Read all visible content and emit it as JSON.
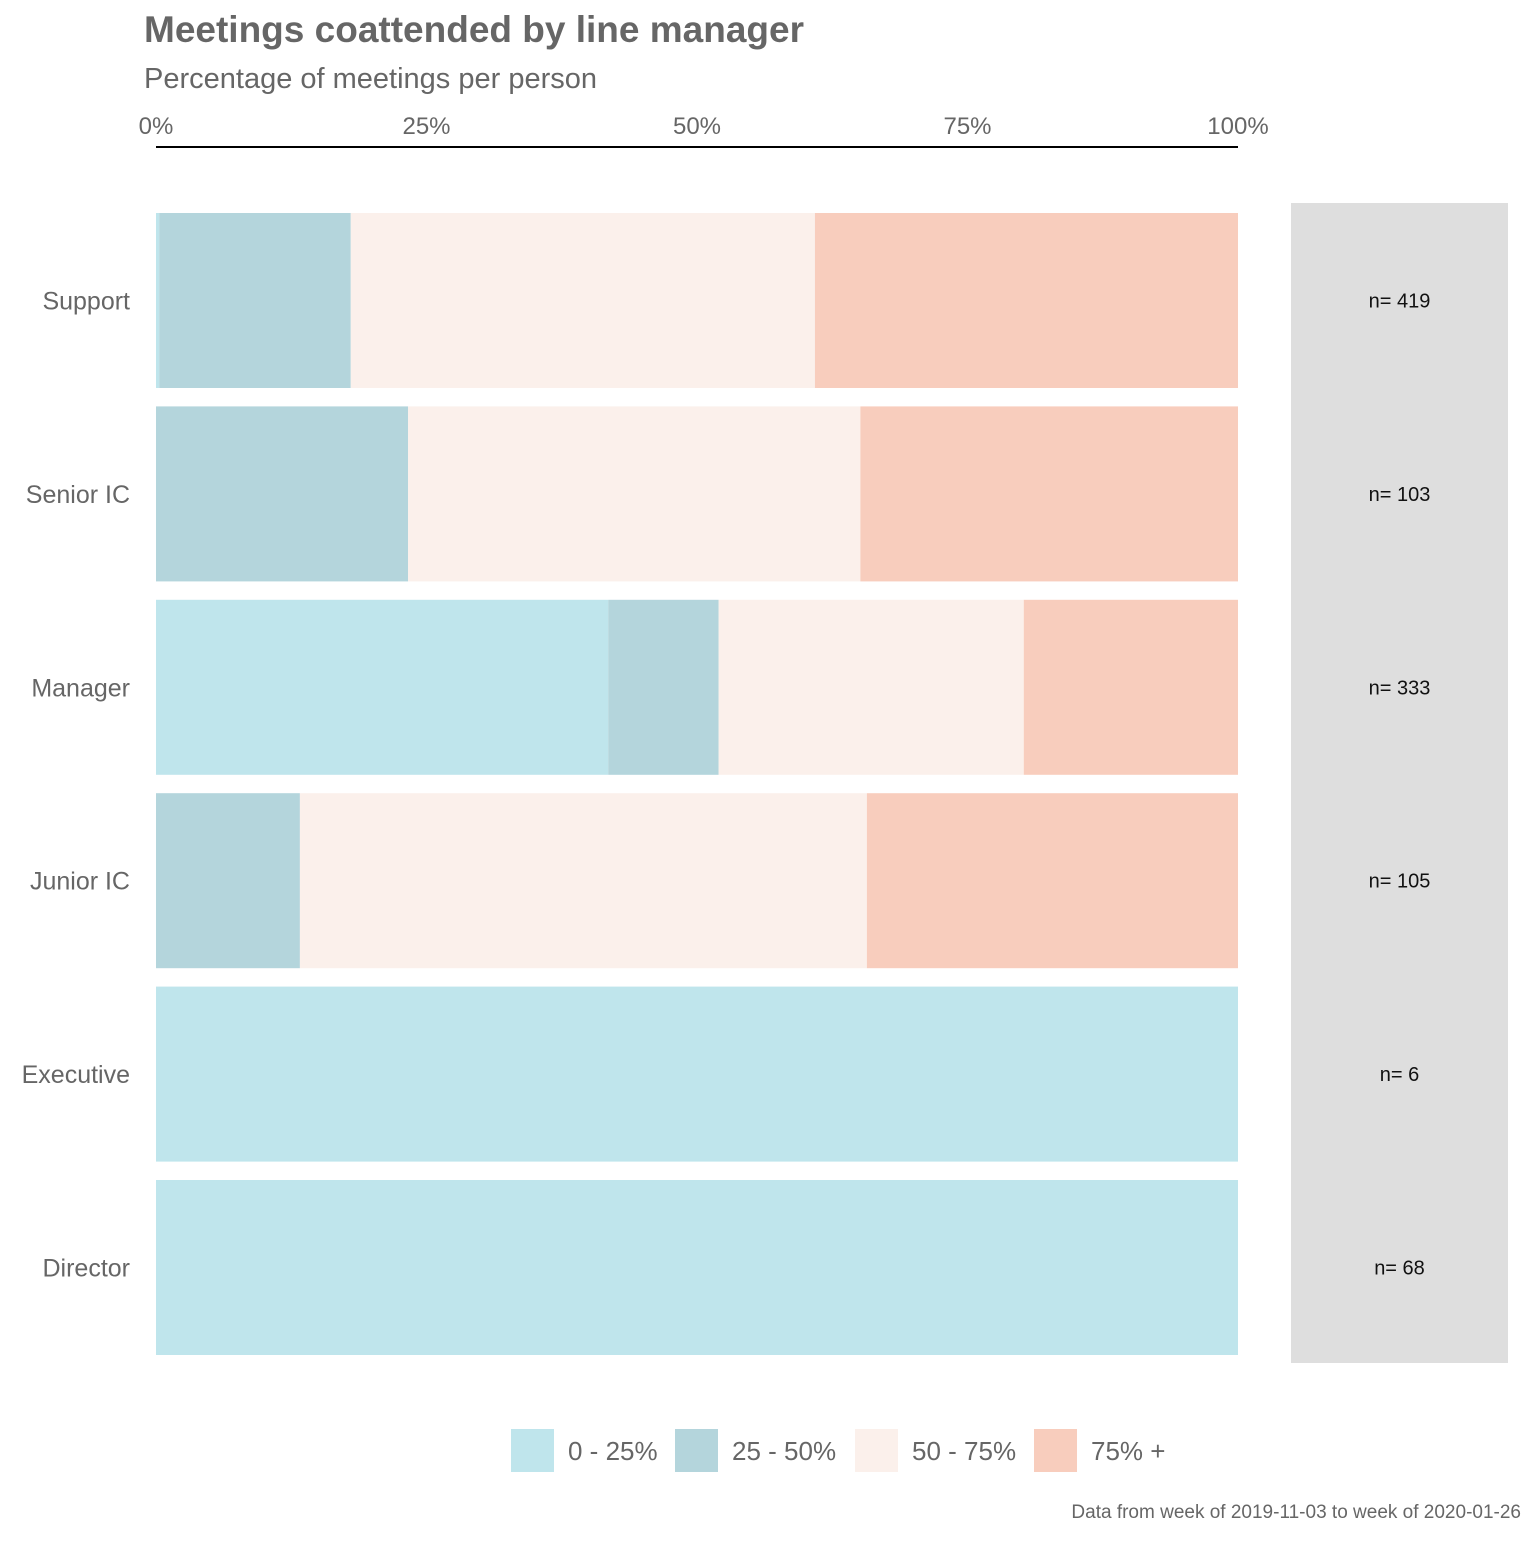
{
  "chart_data": {
    "type": "bar",
    "orientation": "horizontal",
    "stacked": true,
    "title": "Meetings coattended by line manager",
    "subtitle": "Percentage of meetings per person",
    "caption": "Data from week of 2019-11-03 to week of 2020-01-26",
    "xlabel": "",
    "ylabel": "",
    "xlim": [
      0,
      100
    ],
    "x_ticks": [
      0,
      25,
      50,
      75,
      100
    ],
    "x_tick_labels": [
      "0%",
      "25%",
      "50%",
      "75%",
      "100%"
    ],
    "axis_position": "top",
    "grid": false,
    "legend_position": "bottom",
    "categories": [
      "Support",
      "Senior IC",
      "Manager",
      "Junior IC",
      "Executive",
      "Director"
    ],
    "series": [
      {
        "name": "0 - 25%",
        "color": "#bfe5ec",
        "values": [
          0.3,
          0,
          41.8,
          0,
          100,
          100
        ]
      },
      {
        "name": "25 - 50%",
        "color": "#b4d5dc",
        "values": [
          17.7,
          23.3,
          10.2,
          13.3,
          0,
          0
        ]
      },
      {
        "name": "50 - 75%",
        "color": "#fbf0eb",
        "values": [
          42.9,
          41.8,
          28.2,
          52.4,
          0,
          0
        ]
      },
      {
        "name": "75% +",
        "color": "#f8cdbd",
        "values": [
          39.1,
          34.9,
          19.8,
          34.3,
          0,
          0
        ]
      }
    ],
    "side_panel": {
      "color": "#dedede",
      "labels": [
        "n= 419",
        "n= 103",
        "n= 333",
        "n= 105",
        "n= 6",
        "n= 68"
      ]
    },
    "colors": {
      "title": "#666666",
      "tick_label": "#666666",
      "axis_line": "#000000",
      "n_label": "#111111"
    }
  }
}
